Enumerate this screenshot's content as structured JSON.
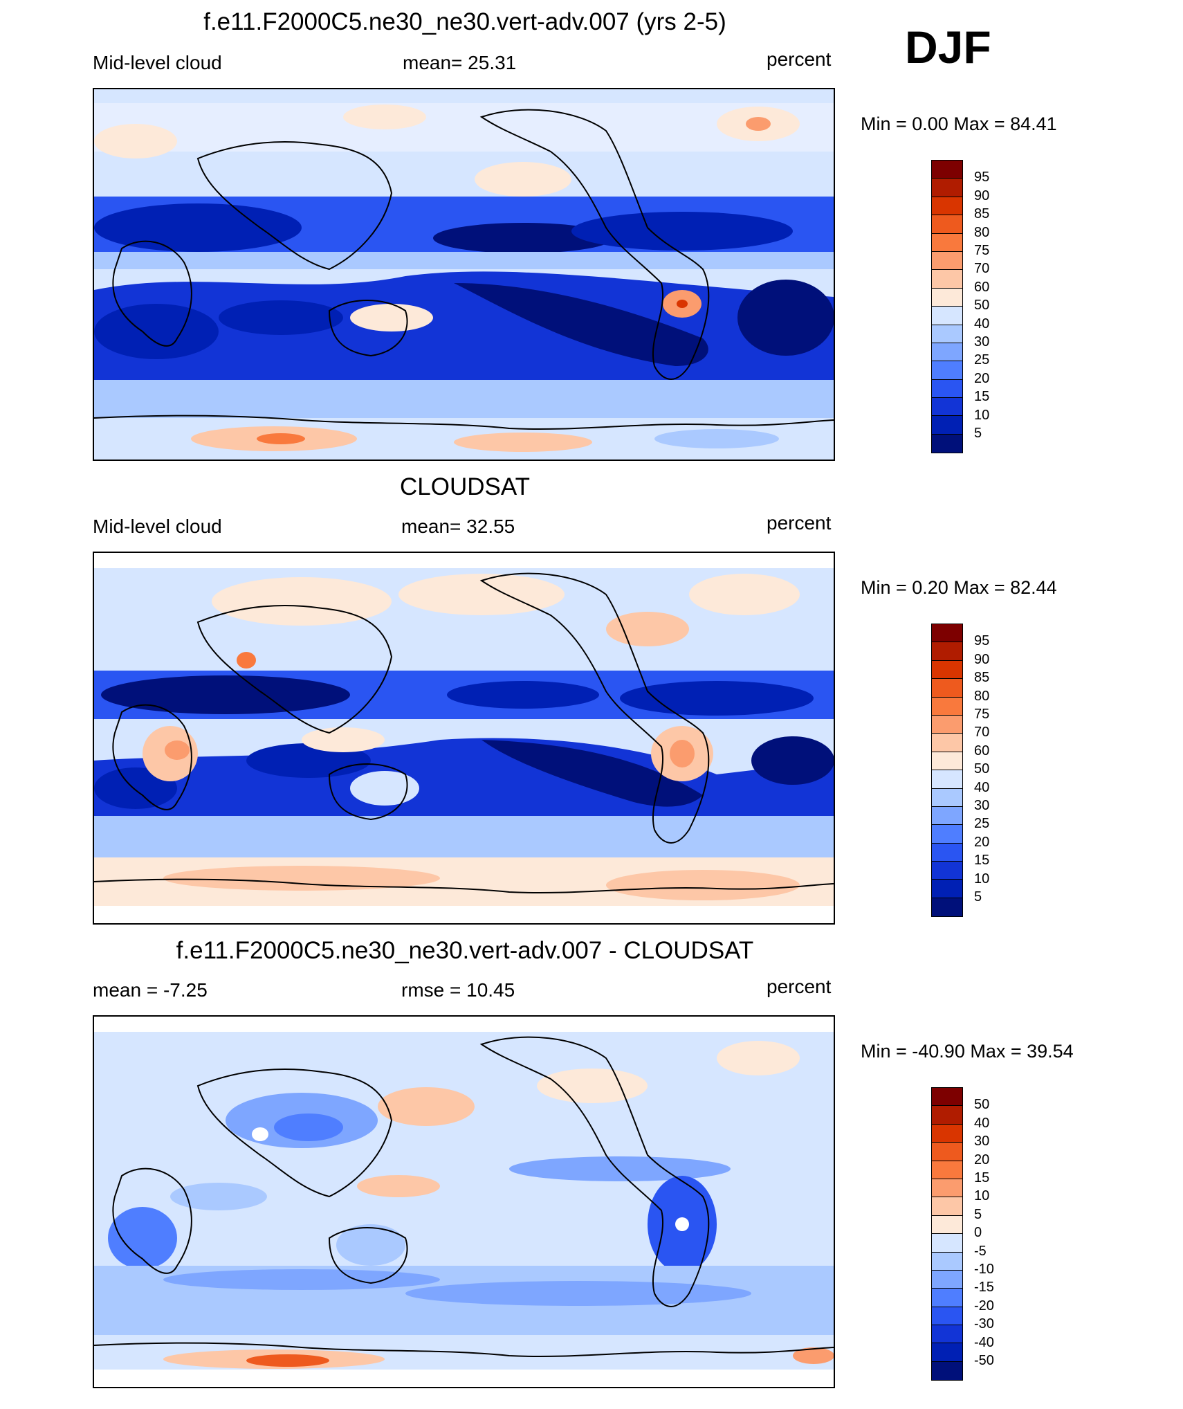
{
  "season": "DJF",
  "panels": [
    {
      "title": "f.e11.F2000C5.ne30_ne30.vert-adv.007 (yrs 2-5)",
      "left_label": "Mid-level cloud",
      "center_label": "mean=  25.31",
      "right_label": "percent",
      "minmax": "Min =   0.00 Max =  84.41",
      "colorbar_labels": [
        "95",
        "90",
        "85",
        "80",
        "75",
        "70",
        "60",
        "50",
        "40",
        "30",
        "25",
        "20",
        "15",
        "10",
        "5"
      ]
    },
    {
      "title": "CLOUDSAT",
      "left_label": "Mid-level cloud",
      "center_label": "mean=  32.55",
      "right_label": "percent",
      "minmax": "Min =   0.20 Max =  82.44",
      "colorbar_labels": [
        "95",
        "90",
        "85",
        "80",
        "75",
        "70",
        "60",
        "50",
        "40",
        "30",
        "25",
        "20",
        "15",
        "10",
        "5"
      ]
    },
    {
      "title": "f.e11.F2000C5.ne30_ne30.vert-adv.007 - CLOUDSAT",
      "left_label": "mean =  -7.25",
      "center_label": "rmse =  10.45",
      "right_label": "percent",
      "minmax": "Min = -40.90 Max =  39.54",
      "colorbar_labels": [
        "50",
        "40",
        "30",
        "20",
        "15",
        "10",
        "5",
        "0",
        "-5",
        "-10",
        "-15",
        "-20",
        "-30",
        "-40",
        "-50"
      ]
    }
  ],
  "colorbar_colors": [
    "#7d0000",
    "#b01c00",
    "#d93500",
    "#ee5a1e",
    "#f9793d",
    "#fb9c6e",
    "#fdc7a7",
    "#fde9d9",
    "#d6e6ff",
    "#aac9ff",
    "#7ea6ff",
    "#4f7eff",
    "#2a55f2",
    "#1234d6",
    "#0020b4",
    "#00107a"
  ],
  "colors": {
    "ocean_base": "#d6e6ff",
    "coast": "#000000"
  }
}
